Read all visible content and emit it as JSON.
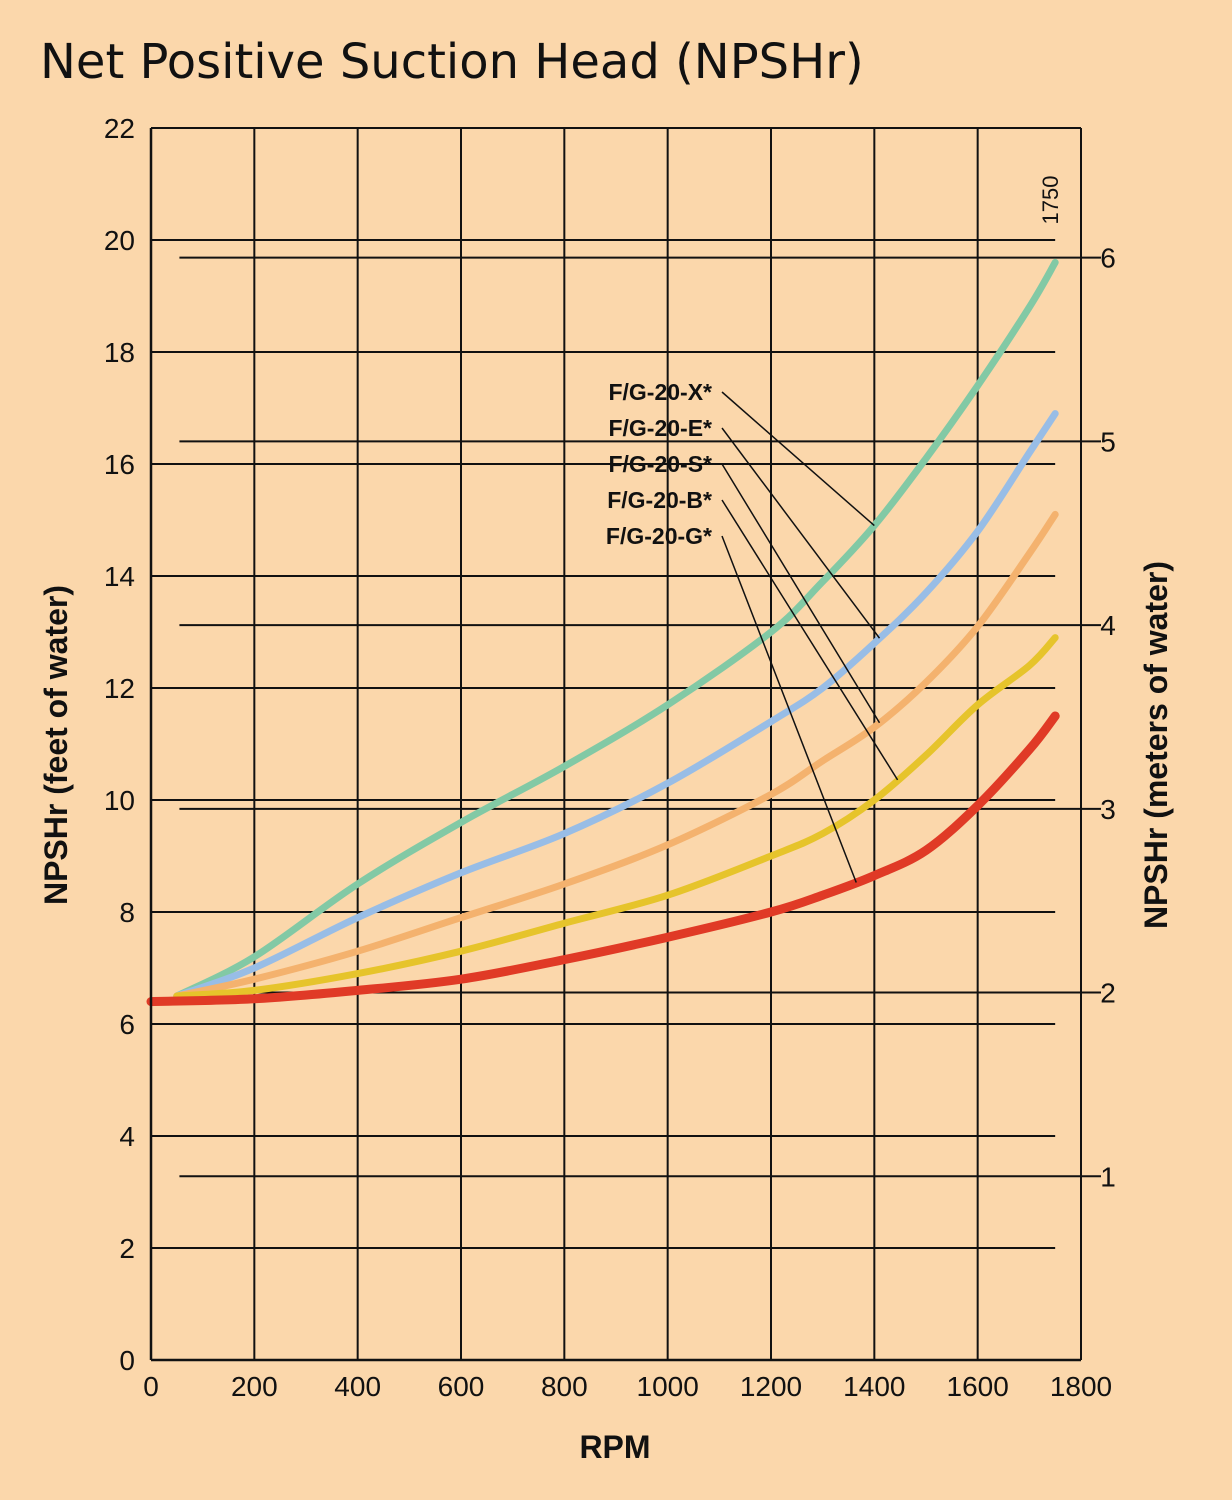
{
  "chart_data": {
    "type": "line",
    "title": "Net Positive Suction Head (NPSHr)",
    "xlabel": "RPM",
    "ylabel": "NPSHr (feet of water)",
    "y2label": "NPSHr (meters of water)",
    "xlim": [
      0,
      1800
    ],
    "ylim": [
      0,
      22
    ],
    "y2lim": [
      0,
      6.7056
    ],
    "x_ticks": [
      "0",
      "200",
      "400",
      "600",
      "800",
      "1000",
      "1200",
      "1400",
      "1600",
      "1800"
    ],
    "y_ticks": [
      "0",
      "2",
      "4",
      "6",
      "8",
      "10",
      "12",
      "14",
      "16",
      "18",
      "20",
      "22"
    ],
    "y2_ticks": [
      "1",
      "2",
      "3",
      "4",
      "5",
      "6"
    ],
    "grid": true,
    "annotation": "1750",
    "background": "#fbd7ab",
    "series": [
      {
        "name": "F/G-20-X*",
        "color": "#82c9a5",
        "x": [
          50,
          200,
          400,
          600,
          800,
          1000,
          1200,
          1300,
          1400,
          1500,
          1600,
          1700,
          1750
        ],
        "y": [
          6.5,
          7.2,
          8.5,
          9.6,
          10.6,
          11.7,
          13.0,
          13.9,
          14.9,
          16.1,
          17.4,
          18.8,
          19.6
        ]
      },
      {
        "name": "F/G-20-E*",
        "color": "#98bde6",
        "x": [
          50,
          200,
          400,
          600,
          800,
          1000,
          1200,
          1300,
          1400,
          1500,
          1600,
          1700,
          1750
        ],
        "y": [
          6.5,
          7.0,
          7.9,
          8.7,
          9.4,
          10.3,
          11.4,
          12.0,
          12.8,
          13.7,
          14.8,
          16.2,
          16.9
        ]
      },
      {
        "name": "F/G-20-S*",
        "color": "#f4b26e",
        "x": [
          50,
          200,
          400,
          600,
          800,
          1000,
          1200,
          1300,
          1400,
          1500,
          1600,
          1700,
          1750
        ],
        "y": [
          6.5,
          6.8,
          7.3,
          7.9,
          8.5,
          9.2,
          10.1,
          10.7,
          11.3,
          12.1,
          13.1,
          14.4,
          15.1
        ]
      },
      {
        "name": "F/G-20-B*",
        "color": "#e6c42b",
        "x": [
          50,
          200,
          400,
          600,
          800,
          1000,
          1200,
          1300,
          1400,
          1500,
          1600,
          1700,
          1750
        ],
        "y": [
          6.5,
          6.6,
          6.9,
          7.3,
          7.8,
          8.3,
          9.0,
          9.4,
          10.0,
          10.8,
          11.7,
          12.4,
          12.9
        ]
      },
      {
        "name": "F/G-20-G*",
        "color": "#e03a26",
        "x": [
          0,
          200,
          400,
          600,
          800,
          1000,
          1200,
          1300,
          1400,
          1500,
          1600,
          1700,
          1750
        ],
        "y": [
          6.4,
          6.45,
          6.6,
          6.8,
          7.15,
          7.55,
          8.0,
          8.3,
          8.65,
          9.1,
          9.9,
          10.9,
          11.5
        ]
      }
    ]
  }
}
